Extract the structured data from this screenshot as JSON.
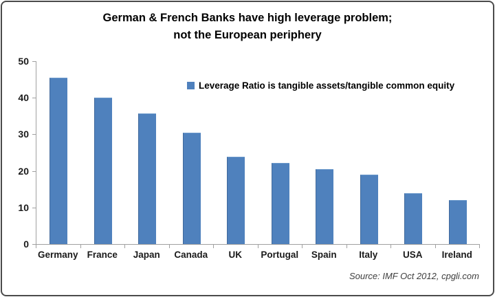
{
  "frame": {
    "border_color": "#4a4a4a"
  },
  "title": {
    "line1": "German & French Banks have high leverage problem;",
    "line2": "not the European periphery"
  },
  "legend": {
    "label": "Leverage Ratio is tangible assets/tangible common equity",
    "marker_color": "#4F81BD"
  },
  "source": {
    "text": "Source: IMF Oct 2012, cpgli.com"
  },
  "chart_data": {
    "type": "bar",
    "title": "German & French Banks have high leverage problem; not the European periphery",
    "categories": [
      "Germany",
      "France",
      "Japan",
      "Canada",
      "UK",
      "Portugal",
      "Spain",
      "Italy",
      "USA",
      "Ireland"
    ],
    "values": [
      45.5,
      40,
      35.7,
      30.4,
      23.9,
      22.1,
      20.4,
      19,
      14,
      12
    ],
    "series_name": "Leverage Ratio is tangible assets/tangible common equity",
    "xlabel": "",
    "ylabel": "",
    "ylim": [
      0,
      50
    ],
    "yticks": [
      0,
      10,
      20,
      30,
      40,
      50
    ],
    "grid": false,
    "bar_color": "#4F81BD",
    "legend_position": "inside-upper-right",
    "annotation": "Source: IMF Oct 2012, cpgli.com"
  }
}
